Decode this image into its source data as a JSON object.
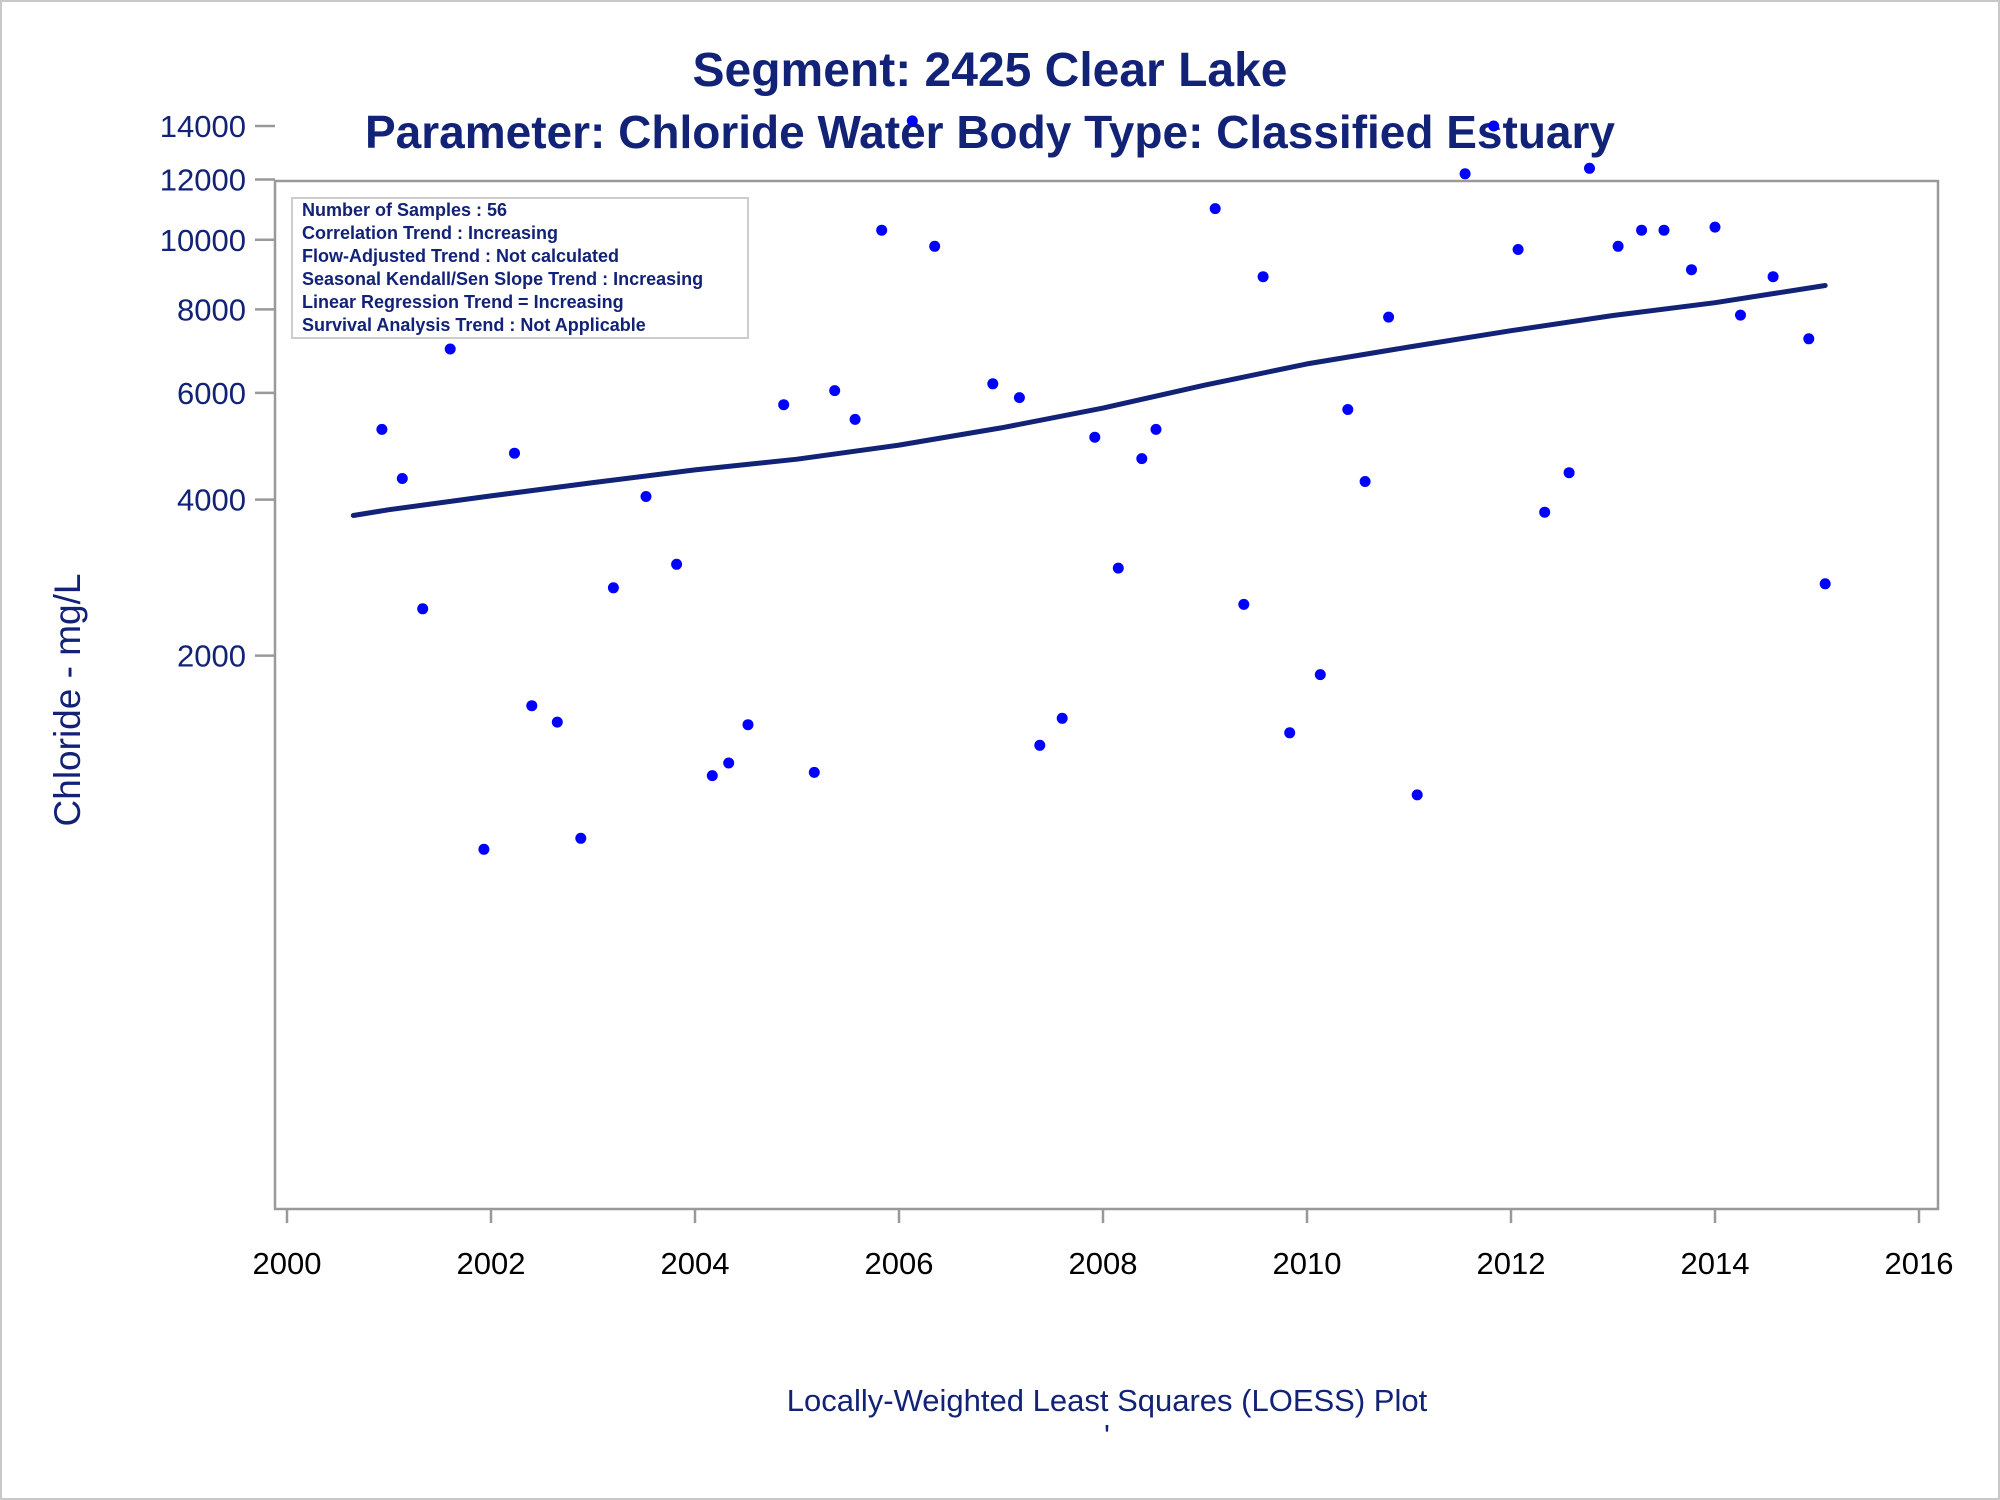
{
  "title": "Segment: 2425  Clear Lake",
  "subtitle": "Parameter: Chloride   Water Body Type: Classified Estuary",
  "footnote": "Locally-Weighted Least Squares (LOESS) Plot",
  "footnote_mark": "'",
  "colors": {
    "text": "#112277",
    "points": "#0000ff",
    "line": "#112277",
    "frame": "#999999",
    "box_border": "#cccccc"
  },
  "stats_box": {
    "lines": [
      "Number of Samples : 56",
      "Correlation Trend : Increasing",
      "Flow-Adjusted Trend : Not calculated",
      "Seasonal Kendall/Sen Slope Trend : Increasing",
      "Linear Regression Trend = Increasing",
      "Survival Analysis Trend : Not Applicable"
    ]
  },
  "chart_data": {
    "type": "scatter",
    "title": "Segment: 2425  Clear Lake",
    "subtitle": "Parameter: Chloride   Water Body Type: Classified Estuary",
    "xlabel": "",
    "ylabel": "Chloride - mg/L",
    "x_ticks": [
      2000,
      2002,
      2004,
      2006,
      2008,
      2010,
      2012,
      2014,
      2016
    ],
    "y_ticks": [
      2000,
      4000,
      6000,
      8000,
      10000,
      12000,
      14000
    ],
    "xlim": [
      1999.9,
      2016.2
    ],
    "ylim": [
      640,
      15200
    ],
    "y_scale": "nonlinear (power)",
    "grid": false,
    "legend": "stats box top-left",
    "series": [
      {
        "type": "scatter",
        "x": [
          2000.65,
          2000.93,
          2001.13,
          2001.33,
          2001.6,
          2001.93,
          2002.23,
          2002.4,
          2002.65,
          2002.88,
          2003.2,
          2003.42,
          2003.52,
          2003.82,
          2004.17,
          2004.33,
          2004.52,
          2004.87,
          2005.17,
          2005.37,
          2005.57,
          2005.83,
          2006.13,
          2006.35,
          2006.92,
          2007.18,
          2007.38,
          2007.6,
          2007.92,
          2008.15,
          2008.38,
          2008.52,
          2009.1,
          2009.38,
          2009.57,
          2009.83,
          2010.13,
          2010.4,
          2010.57,
          2010.8,
          2011.08,
          2011.55,
          2011.83,
          2012.07,
          2012.33,
          2012.57,
          2012.77,
          2013.05,
          2013.28,
          2013.5,
          2013.77,
          2014.0,
          2014.25,
          2014.57,
          2014.92,
          2015.08
        ],
        "y": [
          10100,
          5250,
          4350,
          2500,
          7000,
          660,
          4800,
          1550,
          1420,
          710,
          2750,
          7900,
          4050,
          3050,
          1050,
          1130,
          1400,
          5750,
          1070,
          6050,
          5450,
          10300,
          14200,
          9800,
          6200,
          5900,
          1250,
          1450,
          5100,
          3000,
          4700,
          5250,
          11000,
          2550,
          8900,
          1340,
          1820,
          5650,
          4300,
          7800,
          935,
          12200,
          14000,
          9700,
          3800,
          4450,
          12400,
          9800,
          10300,
          10300,
          9100,
          10400,
          7850,
          8900,
          7250,
          2800
        ]
      },
      {
        "type": "line",
        "name": "LOESS",
        "x": [
          2000.65,
          2001.0,
          2002.0,
          2003.0,
          2004.0,
          2005.0,
          2006.0,
          2007.0,
          2008.0,
          2009.0,
          2010.0,
          2011.0,
          2012.0,
          2013.0,
          2014.0,
          2015.08
        ],
        "y": [
          3750,
          3840,
          4060,
          4280,
          4500,
          4690,
          4950,
          5280,
          5680,
          6170,
          6650,
          7050,
          7450,
          7840,
          8180,
          8650
        ]
      }
    ]
  }
}
